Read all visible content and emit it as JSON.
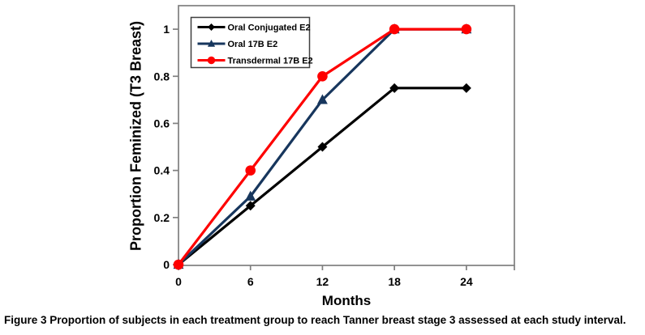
{
  "figure": {
    "caption_label": "Figure 3",
    "caption_text": "Proportion of subjects in each treatment group to reach Tanner breast stage 3 assessed at each study interval."
  },
  "chart_data": {
    "type": "line",
    "title": "",
    "xlabel": "Months",
    "ylabel": "Proportion Feminized (T3 Breast)",
    "x": [
      0,
      6,
      12,
      18,
      24
    ],
    "xlim": [
      0,
      28
    ],
    "ylim": [
      0,
      1.1
    ],
    "x_ticks": [
      0,
      6,
      12,
      18,
      24
    ],
    "x_tick_labels": [
      "0",
      "6",
      "12",
      "18",
      "24"
    ],
    "y_ticks": [
      0,
      0.2,
      0.4,
      0.6,
      0.8,
      1
    ],
    "y_tick_labels": [
      "0",
      "0.2",
      "0.4",
      "0.6",
      "0.8",
      "1"
    ],
    "grid": false,
    "legend_position": "top-left-inside",
    "frame_color": "#7f7f7f",
    "legend_border_color": "#3f3f3f",
    "series": [
      {
        "name": "Oral Conjugated E2",
        "color": "#000000",
        "marker": "diamond",
        "values": [
          0,
          0.25,
          0.5,
          0.75,
          0.75
        ]
      },
      {
        "name": "Oral 17B E2",
        "color": "#17365D",
        "marker": "triangle",
        "values": [
          0,
          0.29,
          0.7,
          1,
          1
        ]
      },
      {
        "name": "Transdermal 17B E2",
        "color": "#FE0000",
        "marker": "circle",
        "values": [
          0,
          0.4,
          0.8,
          1,
          1
        ]
      }
    ]
  }
}
